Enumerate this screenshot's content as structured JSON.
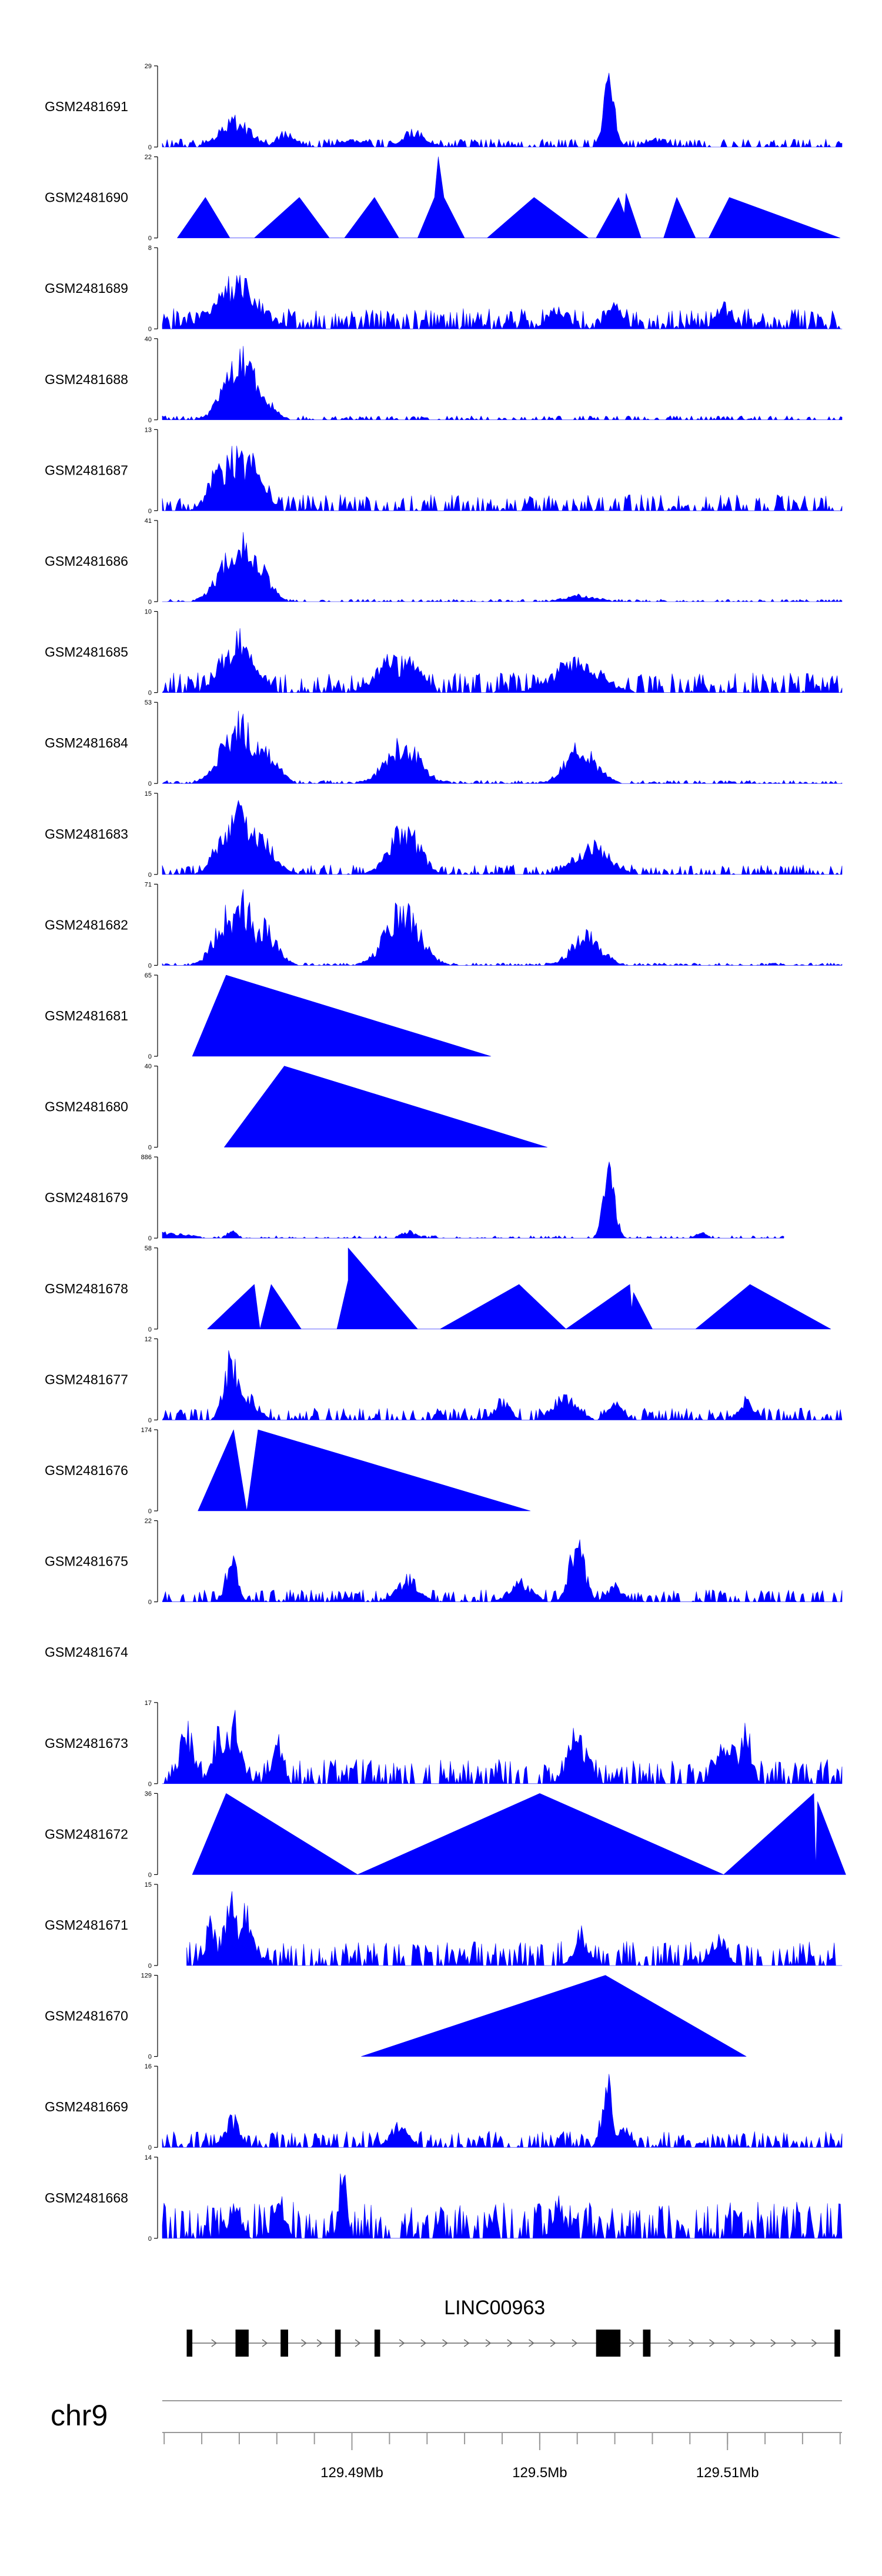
{
  "chart_data": {
    "type": "area",
    "title": "",
    "chromosome": "chr9",
    "xlim": [
      129.4799,
      129.5161
    ],
    "x_ticks": [
      {
        "pos": 129.49,
        "label": "129.49Mb"
      },
      {
        "pos": 129.5,
        "label": "129.5Mb"
      },
      {
        "pos": 129.51,
        "label": "129.51Mb"
      }
    ],
    "minor_tick_step": 0.002,
    "fill_color": "#0000ff",
    "gene": {
      "name": "LINC00963",
      "start": 129.4812,
      "end": 129.516,
      "strand": "+",
      "exons": [
        [
          129.4812,
          129.4815
        ],
        [
          129.4838,
          129.4845
        ],
        [
          129.4862,
          129.4866
        ],
        [
          129.4891,
          129.4894
        ],
        [
          129.4912,
          129.4915
        ],
        [
          129.503,
          129.5043
        ],
        [
          129.5055,
          129.5059
        ],
        [
          129.5157,
          129.516
        ]
      ]
    },
    "series": [
      {
        "name": "GSM2481691",
        "ymax": 29,
        "kind": "noise",
        "seed": 1,
        "base": [
          0.02,
          0.1
        ],
        "density": 0.55,
        "peaks": [
          [
            129.4838,
            0.0008,
            0.4
          ],
          [
            129.4865,
            0.0005,
            0.22
          ],
          [
            129.49,
            0.0006,
            0.12
          ],
          [
            129.4933,
            0.0006,
            0.25
          ],
          [
            129.5037,
            0.0003,
            1.0
          ],
          [
            129.5062,
            0.0005,
            0.12
          ]
        ]
      },
      {
        "name": "GSM2481690",
        "ymax": 22,
        "kind": "sparse",
        "points": [
          [
            129.4807,
            0
          ],
          [
            129.4822,
            0.5
          ],
          [
            129.4835,
            0
          ],
          [
            129.4848,
            0
          ],
          [
            129.4872,
            0.5
          ],
          [
            129.4888,
            0
          ],
          [
            129.4896,
            0
          ],
          [
            129.4912,
            0.5
          ],
          [
            129.4925,
            0
          ],
          [
            129.4935,
            0
          ],
          [
            129.4944,
            0.5
          ],
          [
            129.4946,
            1.0
          ],
          [
            129.4949,
            0.5
          ],
          [
            129.496,
            0
          ],
          [
            129.4972,
            0
          ],
          [
            129.4997,
            0.5
          ],
          [
            129.5026,
            0
          ],
          [
            129.503,
            0
          ],
          [
            129.5042,
            0.5
          ],
          [
            129.5045,
            0.3
          ],
          [
            129.5046,
            0.55
          ],
          [
            129.5054,
            0
          ],
          [
            129.5066,
            0
          ],
          [
            129.5073,
            0.5
          ],
          [
            129.5083,
            0
          ],
          [
            129.509,
            0
          ],
          [
            129.5101,
            0.5
          ],
          [
            129.516,
            0
          ]
        ]
      },
      {
        "name": "GSM2481689",
        "ymax": 8,
        "kind": "noise",
        "seed": 2,
        "base": [
          0.02,
          0.25
        ],
        "density": 0.65,
        "peaks": [
          [
            129.4838,
            0.0012,
            0.7
          ],
          [
            129.4843,
            0.0006,
            0.5
          ],
          [
            129.483,
            0.0004,
            0.6
          ],
          [
            129.501,
            0.0005,
            0.35
          ],
          [
            129.504,
            0.0004,
            0.4
          ],
          [
            129.5098,
            0.0004,
            0.35
          ]
        ]
      },
      {
        "name": "GSM2481688",
        "ymax": 40,
        "kind": "noise",
        "seed": 3,
        "base": [
          0.01,
          0.05
        ],
        "density": 0.4,
        "peaks": [
          [
            129.4842,
            0.0009,
            0.95
          ],
          [
            129.485,
            0.0006,
            0.55
          ]
        ]
      },
      {
        "name": "GSM2481687",
        "ymax": 13,
        "kind": "noise",
        "seed": 4,
        "base": [
          0.02,
          0.2
        ],
        "density": 0.55,
        "peaks": [
          [
            129.483,
            0.0006,
            0.7
          ],
          [
            129.4838,
            0.0007,
            0.85
          ],
          [
            129.4845,
            0.0006,
            0.8
          ],
          [
            129.4852,
            0.0004,
            0.5
          ]
        ]
      },
      {
        "name": "GSM2481686",
        "ymax": 41,
        "kind": "noise",
        "seed": 5,
        "base": [
          0.005,
          0.03
        ],
        "density": 0.45,
        "peaks": [
          [
            129.484,
            0.0009,
            0.95
          ],
          [
            129.485,
            0.0006,
            0.6
          ],
          [
            129.5022,
            0.0009,
            0.1
          ]
        ]
      },
      {
        "name": "GSM2481685",
        "ymax": 10,
        "kind": "noise",
        "seed": 6,
        "base": [
          0.02,
          0.25
        ],
        "density": 0.6,
        "peaks": [
          [
            129.4832,
            0.0005,
            0.6
          ],
          [
            129.484,
            0.0006,
            0.8
          ],
          [
            129.4848,
            0.0005,
            0.5
          ],
          [
            129.492,
            0.0008,
            0.5
          ],
          [
            129.493,
            0.0006,
            0.55
          ],
          [
            129.502,
            0.0012,
            0.5
          ]
        ]
      },
      {
        "name": "GSM2481684",
        "ymax": 53,
        "kind": "noise",
        "seed": 7,
        "base": [
          0.005,
          0.04
        ],
        "density": 0.45,
        "peaks": [
          [
            129.484,
            0.0009,
            0.95
          ],
          [
            129.485,
            0.0007,
            0.65
          ],
          [
            129.4858,
            0.0005,
            0.3
          ],
          [
            129.4927,
            0.0009,
            0.6
          ],
          [
            129.5022,
            0.0008,
            0.55
          ]
        ]
      },
      {
        "name": "GSM2481683",
        "ymax": 15,
        "kind": "noise",
        "seed": 8,
        "base": [
          0.01,
          0.12
        ],
        "density": 0.55,
        "peaks": [
          [
            129.4833,
            0.0006,
            0.7
          ],
          [
            129.484,
            0.0006,
            0.95
          ],
          [
            129.485,
            0.0008,
            0.6
          ],
          [
            129.4928,
            0.0008,
            0.7
          ],
          [
            129.5028,
            0.0009,
            0.45
          ]
        ]
      },
      {
        "name": "GSM2481682",
        "ymax": 71,
        "kind": "noise",
        "seed": 9,
        "base": [
          0.005,
          0.03
        ],
        "density": 0.45,
        "peaks": [
          [
            129.4834,
            0.0007,
            0.8
          ],
          [
            129.4842,
            0.0006,
            0.95
          ],
          [
            129.4852,
            0.0007,
            0.6
          ],
          [
            129.4927,
            0.0009,
            0.85
          ],
          [
            129.5025,
            0.0008,
            0.45
          ]
        ]
      },
      {
        "name": "GSM2481681",
        "ymax": 65,
        "kind": "sparse",
        "points": [
          [
            129.4815,
            0
          ],
          [
            129.4833,
            1.0
          ],
          [
            129.4974,
            0
          ]
        ]
      },
      {
        "name": "GSM2481680",
        "ymax": 40,
        "kind": "sparse",
        "points": [
          [
            129.4832,
            0
          ],
          [
            129.4864,
            1.0
          ],
          [
            129.5004,
            0
          ]
        ]
      },
      {
        "name": "GSM2481679",
        "ymax": 886,
        "kind": "noise",
        "seed": 10,
        "base": [
          0.005,
          0.03
        ],
        "density": 0.3,
        "end": 129.513,
        "peaks": [
          [
            129.48,
            0.0012,
            0.08
          ],
          [
            129.4836,
            0.0003,
            0.1
          ],
          [
            129.493,
            0.0004,
            0.1
          ],
          [
            129.5037,
            0.0003,
            1.0
          ],
          [
            129.5086,
            0.0003,
            0.08
          ]
        ]
      },
      {
        "name": "GSM2481678",
        "ymax": 58,
        "kind": "sparse",
        "points": [
          [
            129.4823,
            0
          ],
          [
            129.4848,
            0.55
          ],
          [
            129.4851,
            0
          ],
          [
            129.4857,
            0.55
          ],
          [
            129.4873,
            0
          ],
          [
            129.4892,
            0
          ],
          [
            129.4898,
            0.6
          ],
          [
            129.4898,
            1.0
          ],
          [
            129.4935,
            0
          ],
          [
            129.4947,
            0
          ],
          [
            129.4989,
            0.55
          ],
          [
            129.5014,
            0
          ],
          [
            129.5048,
            0.55
          ],
          [
            129.5049,
            0.25
          ],
          [
            129.505,
            0.45
          ],
          [
            129.506,
            0
          ],
          [
            129.5083,
            0
          ],
          [
            129.5112,
            0.55
          ],
          [
            129.5155,
            0
          ]
        ]
      },
      {
        "name": "GSM2481677",
        "ymax": 12,
        "kind": "noise",
        "seed": 11,
        "base": [
          0.02,
          0.15
        ],
        "density": 0.5,
        "peaks": [
          [
            129.4836,
            0.0004,
            0.95
          ],
          [
            129.4845,
            0.0005,
            0.35
          ],
          [
            129.498,
            0.0004,
            0.3
          ],
          [
            129.5014,
            0.0006,
            0.4
          ],
          [
            129.504,
            0.0004,
            0.25
          ],
          [
            129.511,
            0.0004,
            0.3
          ]
        ]
      },
      {
        "name": "GSM2481676",
        "ymax": 174,
        "kind": "sparse",
        "points": [
          [
            129.4818,
            0
          ],
          [
            129.4837,
            1.0
          ],
          [
            129.4844,
            0
          ],
          [
            129.485,
            1.0
          ],
          [
            129.4995,
            0
          ]
        ]
      },
      {
        "name": "GSM2481675",
        "ymax": 22,
        "kind": "noise",
        "seed": 12,
        "base": [
          0.01,
          0.15
        ],
        "density": 0.5,
        "peaks": [
          [
            129.4836,
            0.0003,
            0.75
          ],
          [
            129.493,
            0.0006,
            0.35
          ],
          [
            129.499,
            0.0006,
            0.3
          ],
          [
            129.502,
            0.0004,
            0.95
          ],
          [
            129.504,
            0.0004,
            0.25
          ]
        ]
      },
      {
        "name": "GSM2481674",
        "ymax": 0,
        "kind": "empty"
      },
      {
        "name": "GSM2481673",
        "ymax": 17,
        "kind": "noise",
        "seed": 13,
        "base": [
          0.05,
          0.3
        ],
        "density": 0.55,
        "peaks": [
          [
            129.4812,
            0.0004,
            0.8
          ],
          [
            129.483,
            0.0004,
            0.8
          ],
          [
            129.4837,
            0.0004,
            0.95
          ],
          [
            129.486,
            0.0003,
            0.65
          ],
          [
            129.502,
            0.0005,
            0.75
          ],
          [
            129.51,
            0.0005,
            0.7
          ],
          [
            129.511,
            0.0003,
            0.8
          ]
        ]
      },
      {
        "name": "GSM2481672",
        "ymax": 36,
        "kind": "sparse",
        "points": [
          [
            129.4815,
            0
          ],
          [
            129.4833,
            1.0
          ],
          [
            129.4903,
            0
          ],
          [
            129.5,
            1.0
          ],
          [
            129.5098,
            0
          ],
          [
            129.5146,
            1.0
          ],
          [
            129.5147,
            0.1
          ],
          [
            129.5148,
            0.9
          ],
          [
            129.5163,
            0
          ]
        ]
      },
      {
        "name": "GSM2481671",
        "ymax": 15,
        "kind": "noise",
        "seed": 14,
        "base": [
          0.05,
          0.3
        ],
        "density": 0.55,
        "start": 129.4812,
        "peaks": [
          [
            129.4825,
            0.0003,
            0.65
          ],
          [
            129.4835,
            0.0004,
            0.95
          ],
          [
            129.4843,
            0.0004,
            0.8
          ],
          [
            129.5022,
            0.0004,
            0.5
          ],
          [
            129.5095,
            0.0004,
            0.45
          ]
        ]
      },
      {
        "name": "GSM2481670",
        "ymax": 129,
        "kind": "sparse",
        "points": [
          [
            129.4905,
            0
          ],
          [
            129.5035,
            1.0
          ],
          [
            129.511,
            0
          ]
        ]
      },
      {
        "name": "GSM2481669",
        "ymax": 16,
        "kind": "noise",
        "seed": 15,
        "base": [
          0.02,
          0.2
        ],
        "density": 0.55,
        "peaks": [
          [
            129.4836,
            0.0004,
            0.45
          ],
          [
            129.4925,
            0.0005,
            0.35
          ],
          [
            129.5036,
            0.0003,
            0.95
          ],
          [
            129.5045,
            0.0003,
            0.3
          ]
        ]
      },
      {
        "name": "GSM2481668",
        "ymax": 14,
        "kind": "noise",
        "seed": 16,
        "base": [
          0.05,
          0.45
        ],
        "density": 0.6,
        "peaks": [
          [
            129.4895,
            0.0002,
            1.0
          ],
          [
            129.4838,
            0.0003,
            0.55
          ],
          [
            129.4862,
            0.0003,
            0.55
          ],
          [
            129.501,
            0.0003,
            0.55
          ]
        ]
      }
    ]
  }
}
